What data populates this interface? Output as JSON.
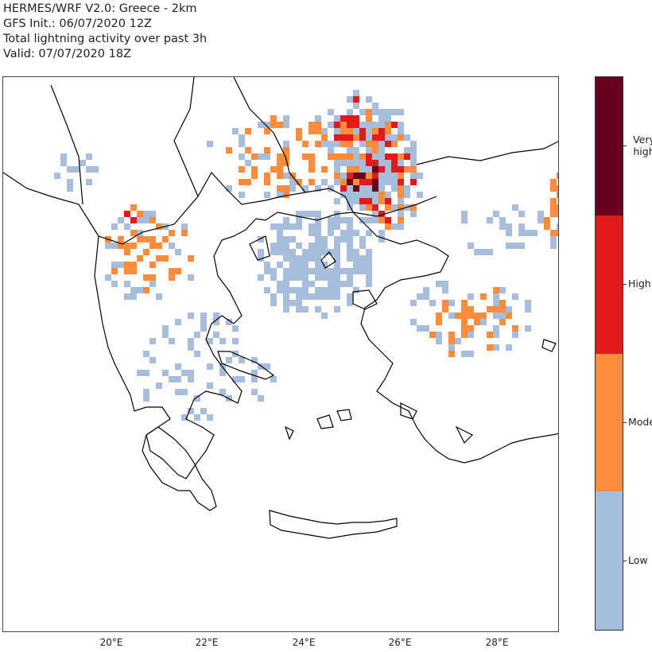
{
  "title": {
    "line1": "HERMES/WRF V2.0: Greece - 2km",
    "line2": "GFS Init.: 06/07/2020 12Z",
    "line3": "Total lightning activity over past 3h",
    "line4": "Valid: 07/07/2020 18Z"
  },
  "map": {
    "x_ticks": [
      "20°E",
      "22°E",
      "24°E",
      "26°E",
      "28°E"
    ]
  },
  "colorbar": {
    "levels": [
      {
        "label": "Very high",
        "color": "#67001f"
      },
      {
        "label": "High",
        "color": "#e31a1c"
      },
      {
        "label": "Moderate",
        "color": "#fd8d3c"
      },
      {
        "label": "Low",
        "color": "#a6bddb"
      }
    ]
  }
}
